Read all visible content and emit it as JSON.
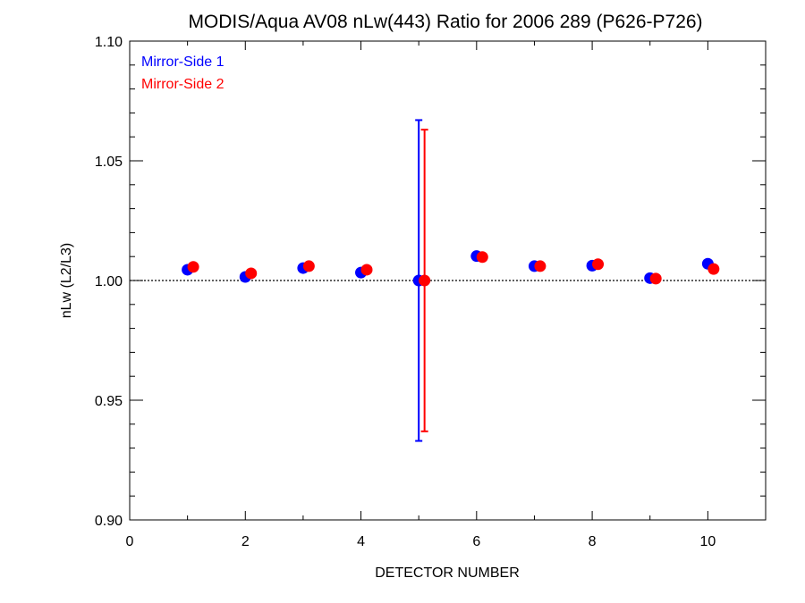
{
  "chart_data": {
    "type": "scatter",
    "title": "MODIS/Aqua AV08 nLw(443) Ratio for 2006 289 (P626-P726)",
    "xlabel": "DETECTOR NUMBER",
    "ylabel": "nLw (L2/L3)",
    "xlim": [
      0,
      11
    ],
    "ylim": [
      0.9,
      1.1
    ],
    "x_ticks": [
      0,
      2,
      4,
      6,
      8,
      10
    ],
    "x_tick_labels": [
      "0",
      "2",
      "4",
      "6",
      "8",
      "10"
    ],
    "y_ticks": [
      0.9,
      0.95,
      1.0,
      1.05,
      1.1
    ],
    "y_tick_labels": [
      "0.90",
      "0.95",
      "1.00",
      "1.05",
      "1.10"
    ],
    "reference_line": {
      "y": 1.0,
      "style": "dotted"
    },
    "legend_position": "top-left",
    "series": [
      {
        "name": "Mirror-Side 1",
        "color": "#0000ff",
        "x": [
          1,
          2,
          3,
          4,
          5,
          6,
          7,
          8,
          9,
          10
        ],
        "y": [
          1.0045,
          1.0015,
          1.0052,
          1.0033,
          1.0,
          1.0102,
          1.006,
          1.0062,
          1.001,
          1.007
        ],
        "error_bars": [
          {
            "x": 5,
            "low": 0.933,
            "high": 1.067
          }
        ]
      },
      {
        "name": "Mirror-Side 2",
        "color": "#ff0000",
        "x": [
          1.1,
          2.1,
          3.1,
          4.1,
          5.1,
          6.1,
          7.1,
          8.1,
          9.1,
          10.1
        ],
        "y": [
          1.0057,
          1.003,
          1.006,
          1.0045,
          1.0,
          1.0098,
          1.006,
          1.0068,
          1.0008,
          1.0048
        ],
        "error_bars": [
          {
            "x": 5.1,
            "low": 0.937,
            "high": 1.063
          }
        ]
      }
    ]
  }
}
